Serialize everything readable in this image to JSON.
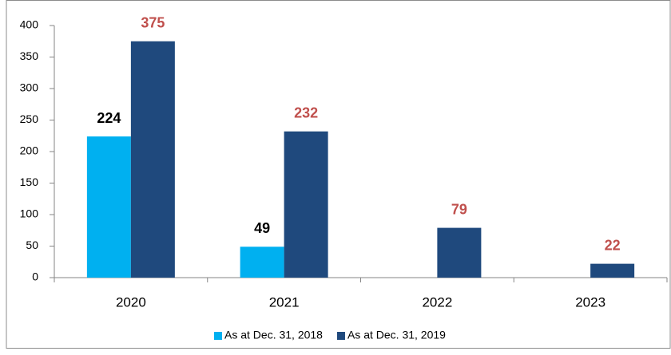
{
  "chart_data": {
    "type": "bar",
    "categories": [
      "2020",
      "2021",
      "2022",
      "2023"
    ],
    "series": [
      {
        "name": "As at Dec. 31, 2018",
        "color": "#00b0f0",
        "label_color": "#000000",
        "values": [
          224,
          49,
          null,
          null
        ]
      },
      {
        "name": "As at Dec. 31, 2019",
        "color": "#1f497d",
        "label_color": "#c0504d",
        "values": [
          375,
          232,
          79,
          22
        ]
      }
    ],
    "ylim": [
      0,
      400
    ],
    "yticks": [
      0,
      50,
      100,
      150,
      200,
      250,
      300,
      350,
      400
    ],
    "grid": false,
    "legend": "bottom"
  }
}
